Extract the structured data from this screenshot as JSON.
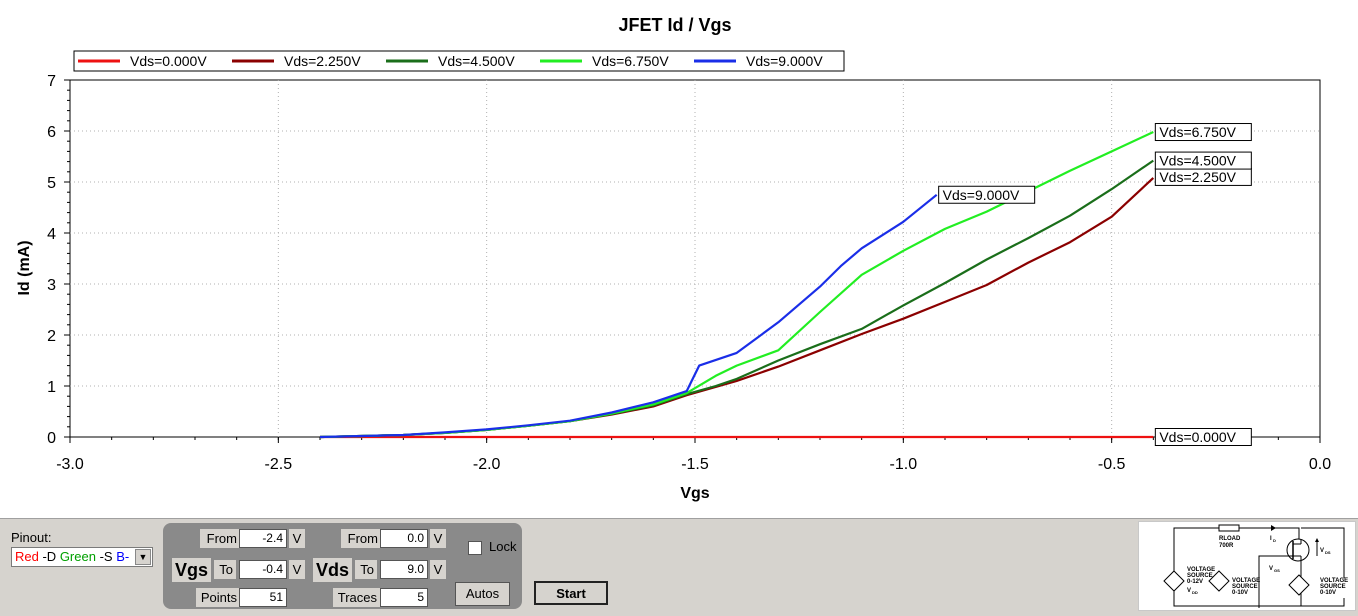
{
  "chart_data": {
    "type": "line",
    "title": "JFET Id / Vgs",
    "xlabel": "Vgs",
    "ylabel": "Id (mA)",
    "xlim": [
      -3.0,
      0.0
    ],
    "ylim": [
      0,
      7
    ],
    "xticks": [
      "-3.0",
      "-2.5",
      "-2.0",
      "-1.5",
      "-1.0",
      "-0.5",
      "0.0"
    ],
    "yticks": [
      "0",
      "1",
      "2",
      "3",
      "4",
      "5",
      "6",
      "7"
    ],
    "grid": true,
    "legend_position": "top-left",
    "series": [
      {
        "name": "Vds=0.000V",
        "color": "#ee1111",
        "x": [
          -2.4,
          -2.0,
          -1.5,
          -1.0,
          -0.5,
          -0.4
        ],
        "y": [
          0,
          0,
          0,
          0,
          0,
          0
        ],
        "end_label": "Vds=0.000V"
      },
      {
        "name": "Vds=2.250V",
        "color": "#8b0000",
        "x": [
          -2.4,
          -2.3,
          -2.2,
          -2.1,
          -2.0,
          -1.9,
          -1.8,
          -1.7,
          -1.6,
          -1.52,
          -1.4,
          -1.3,
          -1.2,
          -1.1,
          -1.0,
          -0.9,
          -0.8,
          -0.7,
          -0.6,
          -0.5,
          -0.4
        ],
        "y": [
          0.0,
          0.02,
          0.04,
          0.08,
          0.14,
          0.22,
          0.31,
          0.44,
          0.6,
          0.82,
          1.1,
          1.38,
          1.7,
          2.02,
          2.32,
          2.65,
          2.98,
          3.42,
          3.82,
          4.32,
          5.08
        ],
        "end_label": "Vds=2.250V"
      },
      {
        "name": "Vds=4.500V",
        "color": "#1a6e1a",
        "x": [
          -2.4,
          -2.3,
          -2.2,
          -2.1,
          -2.0,
          -1.9,
          -1.8,
          -1.7,
          -1.6,
          -1.52,
          -1.45,
          -1.4,
          -1.3,
          -1.2,
          -1.1,
          -1.0,
          -0.9,
          -0.8,
          -0.7,
          -0.6,
          -0.5,
          -0.4
        ],
        "y": [
          0.0,
          0.02,
          0.04,
          0.08,
          0.14,
          0.22,
          0.31,
          0.45,
          0.62,
          0.84,
          1.0,
          1.14,
          1.5,
          1.82,
          2.12,
          2.58,
          3.02,
          3.48,
          3.9,
          4.34,
          4.86,
          5.42
        ],
        "end_label": "Vds=4.500V"
      },
      {
        "name": "Vds=6.750V",
        "color": "#22ee22",
        "x": [
          -2.4,
          -2.3,
          -2.2,
          -2.1,
          -2.0,
          -1.9,
          -1.8,
          -1.7,
          -1.6,
          -1.52,
          -1.45,
          -1.4,
          -1.3,
          -1.2,
          -1.1,
          -1.0,
          -0.9,
          -0.8,
          -0.7,
          -0.6,
          -0.5,
          -0.4
        ],
        "y": [
          0.0,
          0.02,
          0.04,
          0.08,
          0.14,
          0.22,
          0.31,
          0.46,
          0.64,
          0.86,
          1.2,
          1.4,
          1.7,
          2.45,
          3.18,
          3.65,
          4.08,
          4.42,
          4.82,
          5.22,
          5.6,
          5.98
        ],
        "end_label": "Vds=6.750V"
      },
      {
        "name": "Vds=9.000V",
        "color": "#1a2ee8",
        "x": [
          -2.4,
          -2.3,
          -2.2,
          -2.1,
          -2.0,
          -1.9,
          -1.8,
          -1.7,
          -1.6,
          -1.52,
          -1.49,
          -1.4,
          -1.35,
          -1.3,
          -1.2,
          -1.15,
          -1.1,
          -1.0,
          -0.92
        ],
        "y": [
          0.0,
          0.02,
          0.04,
          0.09,
          0.15,
          0.23,
          0.32,
          0.48,
          0.68,
          0.9,
          1.4,
          1.65,
          1.95,
          2.25,
          2.95,
          3.35,
          3.7,
          4.22,
          4.75
        ],
        "end_label": "Vds=9.000V"
      }
    ]
  },
  "controls": {
    "pinout_label": "Pinout:",
    "pinout_value": {
      "red": "Red",
      "red_pin": " -D ",
      "green": "Green",
      "green_pin": " -S ",
      "blue": "B-"
    },
    "vgs_label": "Vgs",
    "vds_label": "Vds",
    "from_label": "From",
    "to_label": "To",
    "points_label": "Points",
    "traces_label": "Traces",
    "unit": "V",
    "vgs_from": "-2.4",
    "vgs_to": "-0.4",
    "vds_from": "0.0",
    "vds_to": "9.0",
    "points": "51",
    "traces": "5",
    "lock_label": "Lock",
    "autos_label": "Autos",
    "start_label": "Start"
  },
  "schematic": {
    "rload_label": "RLOAD",
    "rload_value": "700R",
    "id_label": "I",
    "id_sub": "D",
    "vds_label": "V",
    "vds_sub": "DS",
    "vgs_label": "V",
    "vgs_sub": "GS",
    "source_left": [
      "VOLTAGE",
      "SOURCE",
      "0-12V"
    ],
    "vdd_label": "V",
    "vdd_sub": "DD",
    "source_mid": [
      "VOLTAGE",
      "SOURCE",
      "0-10V"
    ],
    "source_right": [
      "VOLTAGE",
      "SOURCE",
      "0-10V"
    ]
  }
}
